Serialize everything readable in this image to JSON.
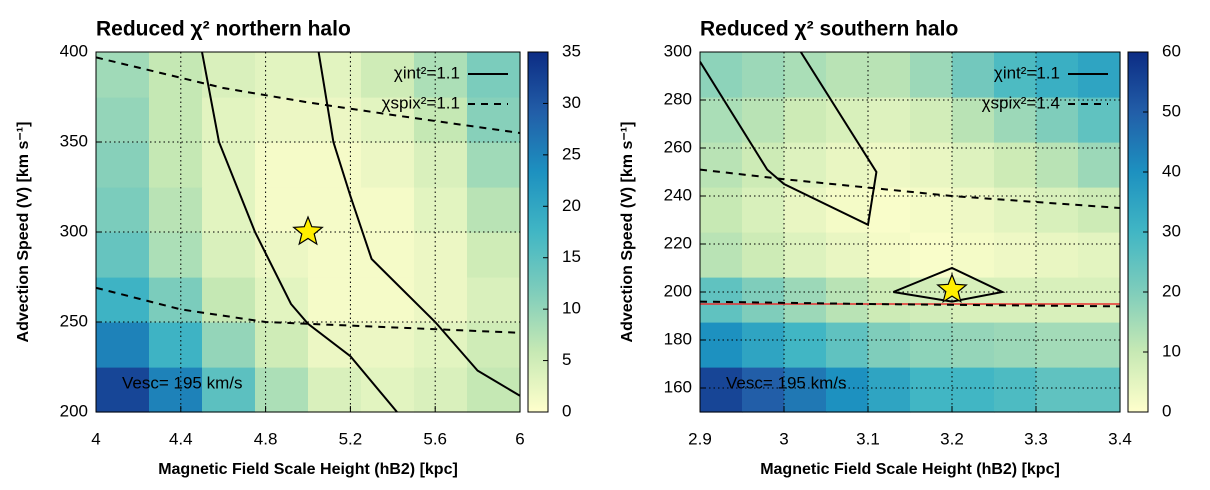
{
  "chart_data": [
    {
      "type": "heatmap",
      "title": "Reduced χ² northern halo",
      "x_label": "Magnetic Field Scale Height (hB2) [kpc]",
      "y_label": "Advection Speed (V) [km s⁻¹]",
      "xlim": [
        4,
        6
      ],
      "xticks": [
        4,
        4.4,
        4.8,
        5.2,
        5.6,
        6
      ],
      "ylim": [
        200,
        400
      ],
      "yticks": [
        200,
        250,
        300,
        350,
        400
      ],
      "clim": [
        0,
        35
      ],
      "cticks": [
        0,
        5,
        10,
        15,
        20,
        25,
        30,
        35
      ],
      "colorscale": [
        "#ffffcc",
        "#c7e9b4",
        "#7fcdbb",
        "#41b6c4",
        "#1d91c0",
        "#225ea8",
        "#0c2c84"
      ],
      "grid": true,
      "legend": "top right",
      "z": [
        [
          32,
          25,
          15,
          8,
          4,
          3,
          4,
          6
        ],
        [
          25,
          18,
          10,
          5,
          2,
          2,
          3,
          5
        ],
        [
          18,
          12,
          6,
          3,
          1,
          1,
          2,
          4
        ],
        [
          14,
          8,
          4,
          2,
          1,
          1,
          2,
          5
        ],
        [
          12,
          7,
          3,
          1,
          1,
          1,
          3,
          7
        ],
        [
          11,
          6,
          3,
          1,
          1,
          2,
          4,
          9
        ],
        [
          10,
          6,
          3,
          2,
          2,
          3,
          6,
          11
        ],
        [
          9,
          6,
          4,
          3,
          3,
          5,
          8,
          12
        ]
      ],
      "series": [
        {
          "name": "χint²=1.1",
          "color": "#000000",
          "dashed": false,
          "x": [
            4.5,
            4.58,
            4.75,
            4.92,
            5.0,
            5.2,
            5.42,
            null,
            5.05,
            5.12,
            5.2,
            5.3,
            5.6,
            5.8,
            6.0
          ],
          "y": [
            400,
            350,
            300,
            260,
            249,
            231,
            200,
            null,
            400,
            350,
            320,
            285,
            250,
            223,
            209
          ]
        },
        {
          "name": "χspix²=1.1",
          "color": "#000000",
          "dashed": true,
          "x": [
            4,
            4.6,
            5.0,
            5.4,
            6.0,
            null,
            4,
            4.4,
            4.8,
            5.2,
            6
          ],
          "y": [
            397,
            380,
            372,
            365,
            355,
            null,
            269,
            257,
            250,
            248,
            244
          ]
        }
      ],
      "markers": {
        "x": [
          5.0
        ],
        "y": [
          300
        ],
        "color": "#ffee00"
      },
      "annotation": "Vesc= 195 km/s",
      "annotation_color": "#e02020"
    },
    {
      "type": "heatmap",
      "title": "Reduced χ² southern halo",
      "x_label": "Magnetic Field Scale Height (hB2) [kpc]",
      "y_label": "Advection Speed (V) [km s⁻¹]",
      "xlim": [
        2.9,
        3.4
      ],
      "xticks": [
        2.9,
        3,
        3.1,
        3.2,
        3.3,
        3.4
      ],
      "ylim": [
        150,
        300
      ],
      "yticks": [
        160,
        180,
        200,
        220,
        240,
        260,
        280,
        300
      ],
      "clim": [
        0,
        60
      ],
      "cticks": [
        0,
        10,
        20,
        30,
        40,
        50,
        60
      ],
      "colorscale": [
        "#ffffcc",
        "#c7e9b4",
        "#7fcdbb",
        "#41b6c4",
        "#1d91c0",
        "#225ea8",
        "#0c2c84"
      ],
      "grid": true,
      "legend": "top right",
      "z": [
        [
          55,
          50,
          45,
          40,
          35,
          30,
          30,
          28,
          25,
          25
        ],
        [
          40,
          35,
          30,
          25,
          20,
          18,
          17,
          16,
          15,
          15
        ],
        [
          25,
          20,
          16,
          12,
          9,
          8,
          7,
          7,
          7,
          7
        ],
        [
          12,
          9,
          6,
          4,
          2,
          1,
          2,
          3,
          4,
          5
        ],
        [
          10,
          7,
          4,
          2,
          1,
          2,
          3,
          5,
          7,
          9
        ],
        [
          12,
          9,
          6,
          4,
          3,
          4,
          6,
          9,
          12,
          16
        ],
        [
          14,
          12,
          9,
          7,
          6,
          8,
          12,
          16,
          20,
          25
        ],
        [
          18,
          16,
          14,
          12,
          12,
          16,
          22,
          28,
          32,
          35
        ]
      ],
      "series": [
        {
          "name": "χint²=1.1",
          "color": "#000000",
          "dashed": false,
          "x": [
            2.9,
            2.98,
            3.0,
            3.1,
            3.11,
            3.02,
            null,
            3.13,
            3.2,
            3.26,
            3.2,
            3.13
          ],
          "y": [
            296,
            251,
            245,
            228,
            250,
            300,
            null,
            200,
            210,
            200,
            196,
            200
          ]
        },
        {
          "name": "χspix²=1.4",
          "color": "#000000",
          "dashed": true,
          "x": [
            2.9,
            3.0,
            3.2,
            3.4,
            null,
            2.9,
            3.1,
            3.4
          ],
          "y": [
            251,
            247,
            240,
            235,
            null,
            196,
            195,
            194
          ]
        }
      ],
      "reference_line": {
        "value": 195,
        "color": "#e83030"
      },
      "markers": {
        "x": [
          3.2
        ],
        "y": [
          201
        ],
        "color": "#ffee00"
      },
      "annotation": "Vesc= 195 km/s",
      "annotation_color": "#e02020"
    }
  ]
}
